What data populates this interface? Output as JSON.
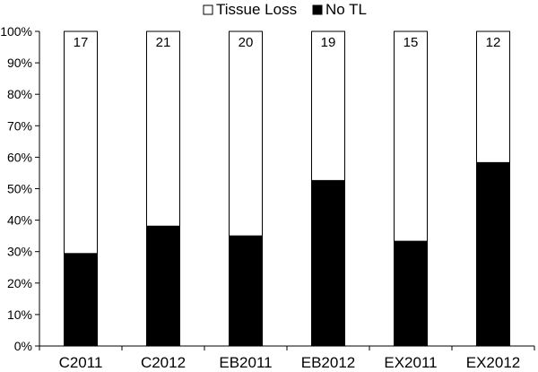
{
  "chart_data": {
    "type": "bar",
    "stacked": true,
    "normalized_percent": true,
    "categories": [
      "C2011",
      "C2012",
      "EB2011",
      "EB2012",
      "EX2011",
      "EX2012"
    ],
    "series": [
      {
        "name": "No TL",
        "color": "#000000",
        "values": [
          29.4,
          38.1,
          35.0,
          52.6,
          33.3,
          58.3
        ]
      },
      {
        "name": "Tissue Loss",
        "color": "#ffffff",
        "values": [
          70.6,
          61.9,
          65.0,
          47.4,
          66.7,
          41.7
        ]
      }
    ],
    "data_labels": [
      "17",
      "21",
      "20",
      "19",
      "15",
      "12"
    ],
    "ylim": [
      0,
      100
    ],
    "y_ticks": [
      0,
      10,
      20,
      30,
      40,
      50,
      60,
      70,
      80,
      90,
      100
    ],
    "y_tick_labels": [
      "0%",
      "10%",
      "20%",
      "30%",
      "40%",
      "50%",
      "60%",
      "70%",
      "80%",
      "90%",
      "100%"
    ],
    "title": "",
    "xlabel": "",
    "ylabel": "",
    "grid": false,
    "legend": {
      "placement": "top-center",
      "items": [
        {
          "label": "Tissue Loss",
          "symbol": "□"
        },
        {
          "label": "No TL",
          "symbol": "■"
        }
      ]
    }
  }
}
